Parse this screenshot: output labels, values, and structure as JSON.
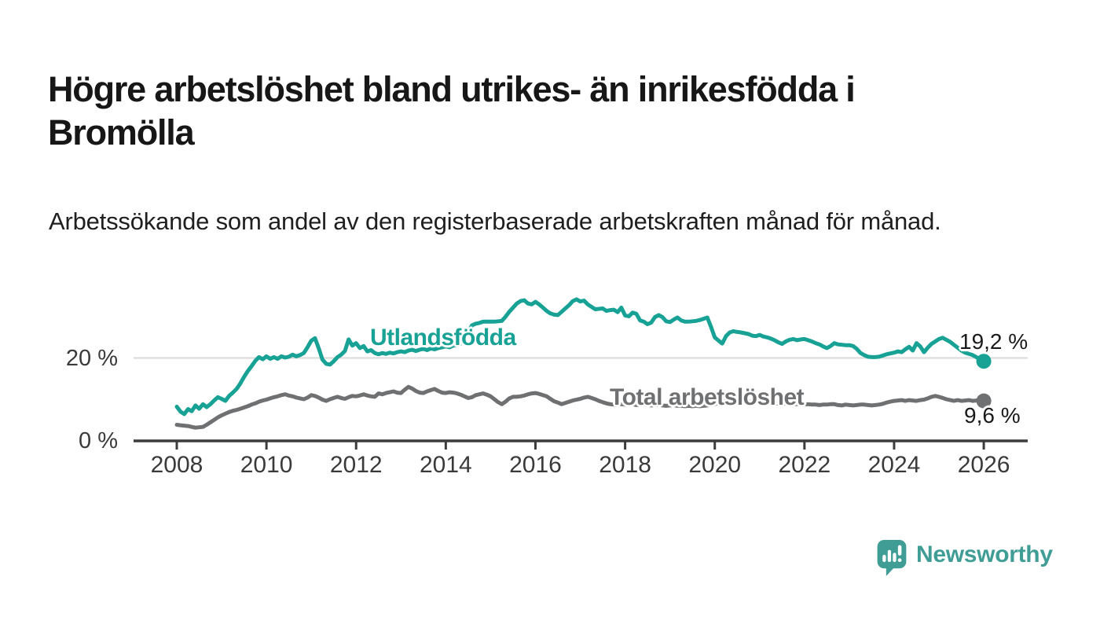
{
  "title": "Högre arbetslöshet bland utrikes- än inrikesfödda i Bromölla",
  "subtitle": "Arbetssökande som andel av den registerbaserade arbetskraften månad för månad.",
  "branding": {
    "name": "Newsworthy",
    "logo_icon": "newsworthy-speech-bubble-bar-chart-icon",
    "color": "#3f9d95"
  },
  "colors": {
    "foreign_born_line": "#17a295",
    "total_line": "#6f7072",
    "axis": "#3c3c3c",
    "gridline": "#d9d9d9",
    "value_label": "#1a1a1a",
    "tick_label": "#3a3a3a",
    "background": "#ffffff"
  },
  "chart_data": {
    "type": "line",
    "title": "Högre arbetslöshet bland utrikes- än inrikesfödda i Bromölla",
    "subtitle": "Arbetssökande som andel av den registerbaserade arbetskraften månad för månad.",
    "x_unit": "year, monthly resolution",
    "y_unit": "percent",
    "x_start": 2008.0,
    "points_per_year": 12,
    "xlim": [
      2007.0,
      2027.0
    ],
    "ylim": [
      0,
      37
    ],
    "grid": "single horizontal gridline at 20 %",
    "legend_position": "inline labels on lines",
    "x_ticks": [
      2008,
      2010,
      2012,
      2014,
      2016,
      2018,
      2020,
      2022,
      2024,
      2026
    ],
    "y_ticks": [
      {
        "value": 0,
        "label": "0 %"
      },
      {
        "value": 20,
        "label": "20 %"
      }
    ],
    "series": [
      {
        "name": "Utlandsfödda",
        "color": "#17a295",
        "end_label": "19,2 %",
        "end_value": 19.2,
        "values": [
          8.2,
          7.0,
          6.4,
          7.6,
          7.1,
          8.5,
          7.7,
          8.8,
          8.1,
          8.8,
          9.7,
          10.5,
          10.1,
          9.6,
          10.8,
          11.6,
          12.5,
          13.8,
          15.4,
          16.8,
          18.0,
          19.3,
          20.2,
          19.7,
          20.4,
          19.8,
          20.2,
          19.8,
          20.4,
          20.1,
          20.3,
          20.8,
          20.4,
          20.7,
          21.2,
          22.6,
          24.2,
          24.8,
          22.3,
          19.6,
          18.6,
          18.4,
          19.2,
          20.2,
          20.8,
          21.7,
          24.5,
          23.0,
          23.6,
          22.4,
          22.9,
          21.6,
          21.9,
          21.2,
          20.9,
          21.2,
          21.0,
          21.3,
          21.1,
          21.4,
          21.6,
          21.4,
          21.8,
          22.0,
          21.7,
          22.0,
          22.2,
          21.9,
          22.3,
          22.1,
          22.4,
          22.6,
          22.8,
          22.6,
          23.0,
          23.2,
          23.5,
          24.8,
          26.3,
          27.9,
          28.3,
          28.5,
          28.8,
          28.8,
          28.8,
          28.8,
          28.9,
          29.0,
          30.0,
          31.2,
          32.2,
          33.2,
          33.8,
          34.0,
          33.2,
          33.0,
          33.6,
          33.0,
          32.2,
          31.4,
          30.8,
          30.5,
          30.4,
          31.2,
          32.0,
          32.8,
          33.8,
          34.2,
          33.7,
          33.9,
          33.0,
          32.4,
          31.8,
          31.9,
          32.0,
          31.4,
          31.6,
          31.7,
          31.1,
          32.2,
          30.3,
          30.1,
          31.0,
          30.7,
          29.1,
          28.8,
          28.2,
          28.6,
          29.9,
          30.4,
          29.9,
          28.9,
          28.7,
          29.3,
          29.8,
          29.1,
          28.8,
          28.8,
          28.9,
          29.0,
          29.2,
          29.5,
          29.8,
          27.5,
          25.0,
          24.2,
          23.5,
          25.3,
          26.2,
          26.5,
          26.3,
          26.2,
          26.0,
          25.8,
          25.4,
          25.3,
          25.6,
          25.2,
          25.0,
          24.7,
          24.3,
          23.8,
          23.4,
          24.0,
          24.4,
          24.6,
          24.3,
          24.5,
          24.6,
          24.3,
          24.0,
          23.6,
          23.3,
          22.8,
          22.4,
          22.9,
          23.6,
          23.3,
          23.2,
          23.1,
          23.1,
          22.9,
          22.2,
          21.2,
          20.7,
          20.3,
          20.2,
          20.2,
          20.3,
          20.6,
          20.9,
          21.1,
          21.3,
          21.6,
          21.4,
          22.1,
          22.7,
          21.8,
          23.6,
          22.8,
          21.4,
          22.5,
          23.4,
          24.0,
          24.6,
          24.9,
          24.4,
          23.9,
          23.2,
          22.5,
          21.8,
          21.3,
          21.0,
          20.7,
          20.2,
          19.7,
          19.2
        ]
      },
      {
        "name": "Total arbetslöshet",
        "color": "#6f7072",
        "end_label": "9,6 %",
        "end_value": 9.6,
        "values": [
          3.8,
          3.7,
          3.6,
          3.5,
          3.3,
          3.1,
          3.2,
          3.3,
          3.8,
          4.4,
          5.0,
          5.6,
          6.1,
          6.5,
          6.9,
          7.2,
          7.4,
          7.7,
          8.0,
          8.3,
          8.7,
          9.0,
          9.4,
          9.7,
          9.9,
          10.2,
          10.5,
          10.7,
          11.0,
          11.2,
          10.9,
          10.7,
          10.4,
          10.2,
          10.0,
          10.4,
          11.0,
          10.8,
          10.4,
          9.9,
          9.6,
          10.0,
          10.3,
          10.6,
          10.3,
          10.1,
          10.5,
          10.8,
          10.7,
          10.9,
          11.2,
          10.9,
          10.7,
          10.6,
          11.4,
          11.2,
          11.5,
          11.7,
          11.9,
          11.6,
          11.5,
          12.3,
          13.0,
          12.6,
          12.0,
          11.6,
          11.5,
          11.9,
          12.2,
          12.5,
          12.0,
          11.6,
          11.5,
          11.7,
          11.6,
          11.4,
          11.1,
          10.7,
          10.3,
          10.5,
          11.0,
          11.2,
          11.4,
          11.1,
          10.7,
          10.0,
          9.3,
          8.8,
          9.4,
          10.2,
          10.6,
          10.6,
          10.7,
          10.9,
          11.2,
          11.4,
          11.5,
          11.3,
          11.0,
          10.7,
          10.1,
          9.5,
          9.2,
          8.8,
          9.1,
          9.4,
          9.7,
          9.9,
          10.1,
          10.4,
          10.6,
          10.3,
          10.0,
          9.6,
          9.3,
          9.0,
          8.8,
          8.7,
          8.7,
          8.8,
          8.7,
          8.9,
          8.8,
          8.6,
          8.7,
          8.8,
          8.6,
          8.5,
          8.6,
          8.7,
          8.5,
          8.4,
          8.5,
          8.6,
          8.4,
          8.4,
          8.3,
          8.4,
          8.3,
          8.4,
          8.3,
          8.4,
          8.5,
          8.6,
          8.8,
          9.1,
          9.4,
          9.7,
          9.8,
          9.7,
          9.6,
          9.7,
          9.6,
          9.5,
          9.4,
          9.3,
          9.3,
          9.2,
          9.1,
          9.2,
          9.1,
          9.0,
          9.0,
          8.9,
          8.9,
          8.8,
          8.8,
          8.7,
          8.7,
          8.8,
          8.7,
          8.7,
          8.6,
          8.7,
          8.7,
          8.8,
          8.8,
          8.6,
          8.5,
          8.7,
          8.6,
          8.5,
          8.6,
          8.7,
          8.7,
          8.6,
          8.5,
          8.6,
          8.7,
          8.9,
          9.2,
          9.4,
          9.6,
          9.7,
          9.8,
          9.6,
          9.8,
          9.7,
          9.6,
          9.8,
          9.9,
          10.2,
          10.6,
          10.8,
          10.6,
          10.3,
          10.0,
          9.8,
          9.6,
          9.8,
          9.6,
          9.7,
          9.8,
          9.6,
          9.7,
          9.7,
          9.6
        ]
      }
    ]
  }
}
